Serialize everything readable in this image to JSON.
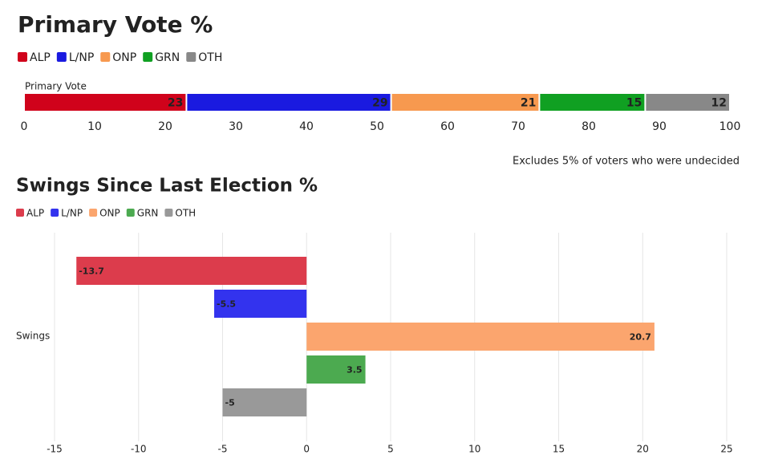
{
  "chart_data": [
    {
      "type": "bar",
      "stacked": true,
      "orientation": "horizontal",
      "title": "Primary Vote %",
      "categories": [
        "Primary Vote"
      ],
      "series": [
        {
          "name": "ALP",
          "color": "#d0021b",
          "values": [
            23
          ]
        },
        {
          "name": "L/NP",
          "color": "#1a1ae0",
          "values": [
            29
          ]
        },
        {
          "name": "ONP",
          "color": "#f7994f",
          "values": [
            21
          ]
        },
        {
          "name": "GRN",
          "color": "#10a022",
          "values": [
            15
          ]
        },
        {
          "name": "OTH",
          "color": "#888888",
          "values": [
            12
          ]
        }
      ],
      "xlim": [
        0,
        100
      ],
      "xticks": [
        0,
        10,
        20,
        30,
        40,
        50,
        60,
        70,
        80,
        90,
        100
      ],
      "grid": false,
      "annotation": "Excludes 5% of voters who were undecided"
    },
    {
      "type": "bar",
      "stacked": false,
      "orientation": "horizontal",
      "title": "Swings Since Last Election %",
      "categories": [
        "Swings"
      ],
      "series": [
        {
          "name": "ALP",
          "color": "#dc3c4c",
          "values": [
            -13.7
          ]
        },
        {
          "name": "L/NP",
          "color": "#3333ee",
          "values": [
            -5.5
          ]
        },
        {
          "name": "ONP",
          "color": "#fba56e",
          "values": [
            20.7
          ]
        },
        {
          "name": "GRN",
          "color": "#4caa50",
          "values": [
            3.5
          ]
        },
        {
          "name": "OTH",
          "color": "#999999",
          "values": [
            -5
          ]
        }
      ],
      "xlim": [
        -15,
        25
      ],
      "xticks": [
        -15,
        -10,
        -5,
        0,
        5,
        10,
        15,
        20,
        25
      ],
      "grid": true
    }
  ]
}
